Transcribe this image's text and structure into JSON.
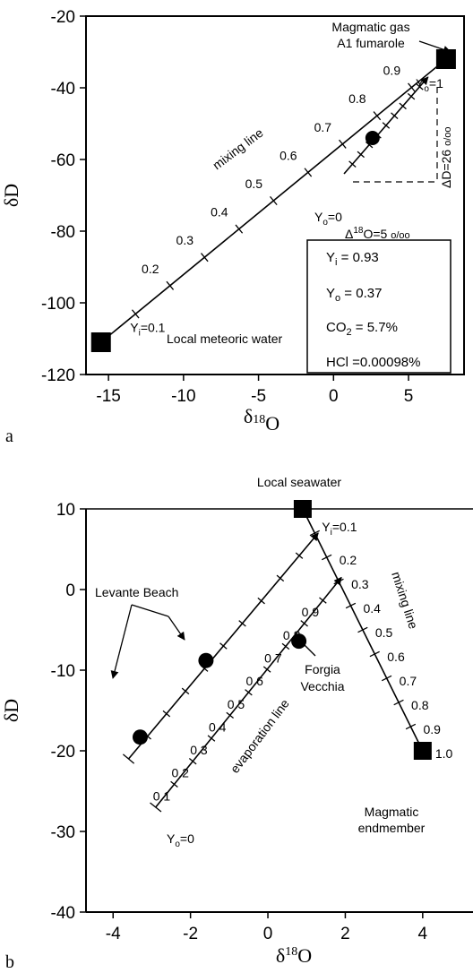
{
  "chart_data": [
    {
      "panel_label": "a",
      "type": "scatter",
      "xlabel": "δ18O",
      "ylabel": "δD",
      "xlim": [
        -16.5,
        8.7
      ],
      "ylim": [
        -120,
        -20
      ],
      "xticks": [
        "-15",
        "-10",
        "-5",
        "0",
        "5"
      ],
      "yticks": [
        "-120",
        "-100",
        "-80",
        "-60",
        "-40",
        "-20"
      ],
      "endmembers": [
        {
          "label": "Local meteoric water",
          "x": -15.5,
          "y": -111
        },
        {
          "label_lines": [
            "Magmatic gas",
            "A1 fumarole"
          ],
          "x": 7.5,
          "y": -32
        }
      ],
      "sample": {
        "x": 2.6,
        "y": -54
      },
      "mixing_line": {
        "label": "mixing line",
        "from": [
          -15.5,
          -111
        ],
        "to": [
          7.5,
          -32
        ],
        "ticks": [
          {
            "value": 0.1,
            "label": "Yi=0.1"
          },
          {
            "value": 0.2,
            "label": "0.2"
          },
          {
            "value": 0.3,
            "label": "0.3"
          },
          {
            "value": 0.4,
            "label": "0.4"
          },
          {
            "value": 0.5,
            "label": "0.5"
          },
          {
            "value": 0.6,
            "label": "0.6"
          },
          {
            "value": 0.7,
            "label": "0.7"
          },
          {
            "value": 0.8,
            "label": "0.8"
          },
          {
            "value": 0.9,
            "label": "0.9"
          }
        ]
      },
      "second_line": {
        "from": [
          0.7,
          -64
        ],
        "to": [
          6.3,
          -37
        ],
        "start_label": "Yo=0",
        "end_label": "Yo=1"
      },
      "delta_annotations": {
        "dD": "ΔD=26 o/oo",
        "d18O": "Δ18O=5 o/oo"
      },
      "summary_box": [
        "Yi = 0.93",
        "Yo = 0.37",
        "CO2 = 5.7%",
        "HCl =0.00098%"
      ]
    },
    {
      "panel_label": "b",
      "type": "scatter",
      "xlabel": "δ18O",
      "ylabel": "δD",
      "xlim": [
        -4.7,
        5.3
      ],
      "ylim": [
        -40,
        10
      ],
      "xticks": [
        "-4",
        "-2",
        "0",
        "2",
        "4"
      ],
      "yticks": [
        "-40",
        "-30",
        "-20",
        "-10",
        "0",
        "10"
      ],
      "endmembers": [
        {
          "label": "Local seawater",
          "x": 0.9,
          "y": 10
        },
        {
          "label_lines": [
            "Magmatic",
            "endmember"
          ],
          "x": 4.0,
          "y": -20
        }
      ],
      "samples": [
        {
          "group": "Levante Beach",
          "x": -3.3,
          "y": -18.3
        },
        {
          "group": "Levante Beach",
          "x": -1.6,
          "y": -8.8
        },
        {
          "group_lines": [
            "Forgia",
            "Vecchia"
          ],
          "x": 0.8,
          "y": -6.4
        }
      ],
      "mixing_line": {
        "label": "mixing line",
        "from": [
          0.9,
          10
        ],
        "to": [
          4.0,
          -20
        ],
        "ticks": [
          {
            "value": 0.1,
            "label": "Yi=0.1"
          },
          {
            "value": 0.2,
            "label": "0.2"
          },
          {
            "value": 0.3,
            "label": "0.3"
          },
          {
            "value": 0.4,
            "label": "0.4"
          },
          {
            "value": 0.5,
            "label": "0.5"
          },
          {
            "value": 0.6,
            "label": "0.6"
          },
          {
            "value": 0.7,
            "label": "0.7"
          },
          {
            "value": 0.8,
            "label": "0.8"
          },
          {
            "value": 0.9,
            "label": "0.9"
          },
          {
            "value": 1.0,
            "label": "1.0"
          }
        ]
      },
      "evaporation_lines": [
        {
          "label": "evaporation line",
          "from": [
            -2.9,
            -27
          ],
          "to": [
            1.9,
            1.5
          ],
          "start_label": "Yo=0",
          "ticks": [
            "0.1",
            "0.2",
            "0.3",
            "0.4",
            "0.5",
            "0.6",
            "0.7",
            "0.8",
            "0.9"
          ]
        },
        {
          "from": [
            -3.6,
            -21
          ],
          "to": [
            1.3,
            7
          ],
          "ticks_count": 9
        }
      ]
    }
  ]
}
